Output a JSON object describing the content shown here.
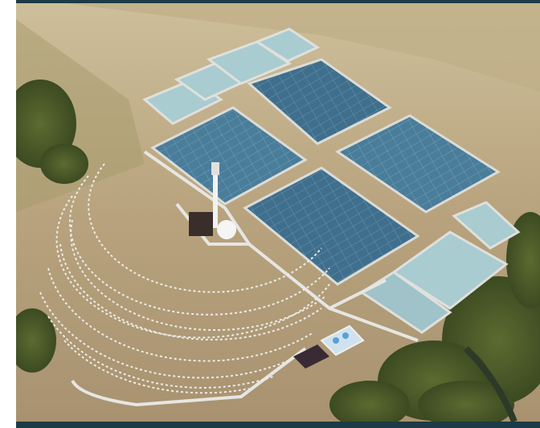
{
  "image": {
    "subject": "aerial-rendering-solar-thermal-and-greenhouse-facility",
    "frame_color": "#1d3b46",
    "palette": {
      "ground": "#b8a37e",
      "dry_grass": "#c8b48e",
      "greenhouse_glass": "#4f7f9a",
      "greenhouse_dark": "#355e78",
      "pond_water": "#9fc3c8",
      "road": "#dcdcd8",
      "trees": "#4c5a2a",
      "heliostat": "#e8e8e8",
      "tower": "#f2f2f2"
    }
  }
}
